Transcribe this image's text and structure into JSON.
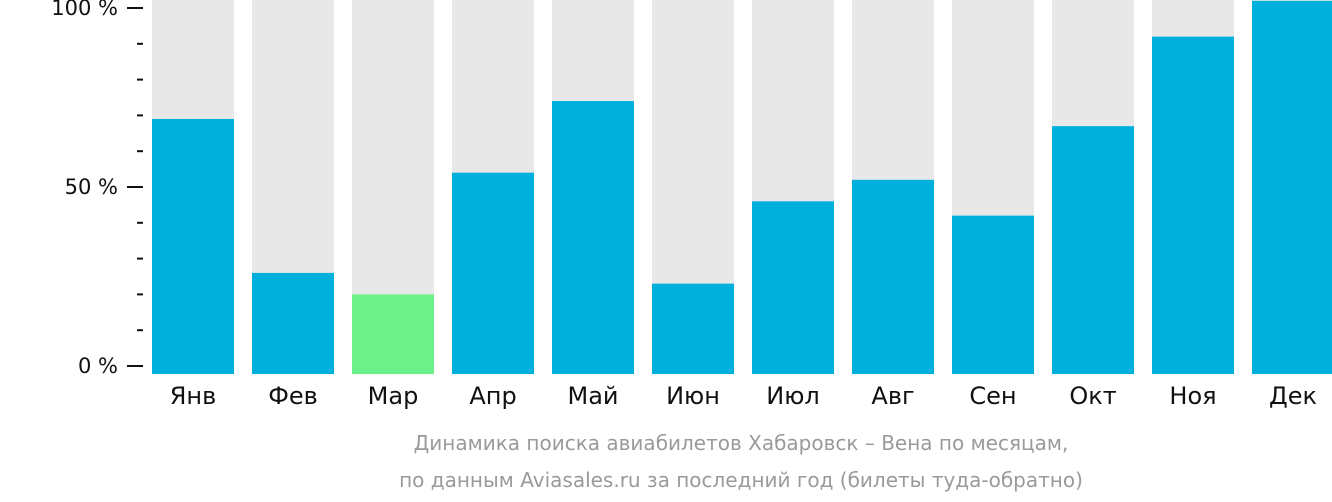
{
  "chart_data": {
    "type": "bar",
    "title": "",
    "xlabel": "",
    "ylabel": "",
    "ylim": [
      0,
      100
    ],
    "categories": [
      "Янв",
      "Фев",
      "Мар",
      "Апр",
      "Май",
      "Июн",
      "Июл",
      "Авг",
      "Сен",
      "Окт",
      "Ноя",
      "Дек"
    ],
    "values": [
      69,
      26,
      20,
      54,
      74,
      23,
      46,
      52,
      42,
      67,
      92,
      102
    ],
    "highlight_index": 2,
    "y_ticks": [
      {
        "value": 100,
        "label": "100 %"
      },
      {
        "value": 50,
        "label": "50 %"
      },
      {
        "value": 0,
        "label": "0 %"
      }
    ],
    "minor_tick_step": 10,
    "grid": false,
    "colors": {
      "bar": "#00b0dc",
      "highlight": "#6cf08a",
      "track": "#e8e8e8",
      "axis": "#111111",
      "caption": "#9a9a9a"
    }
  },
  "caption": {
    "line1": "Динамика поиска авиабилетов Хабаровск – Вена по месяцам,",
    "line2": "по данным Aviasales.ru за последний год (билеты туда-обратно)"
  }
}
